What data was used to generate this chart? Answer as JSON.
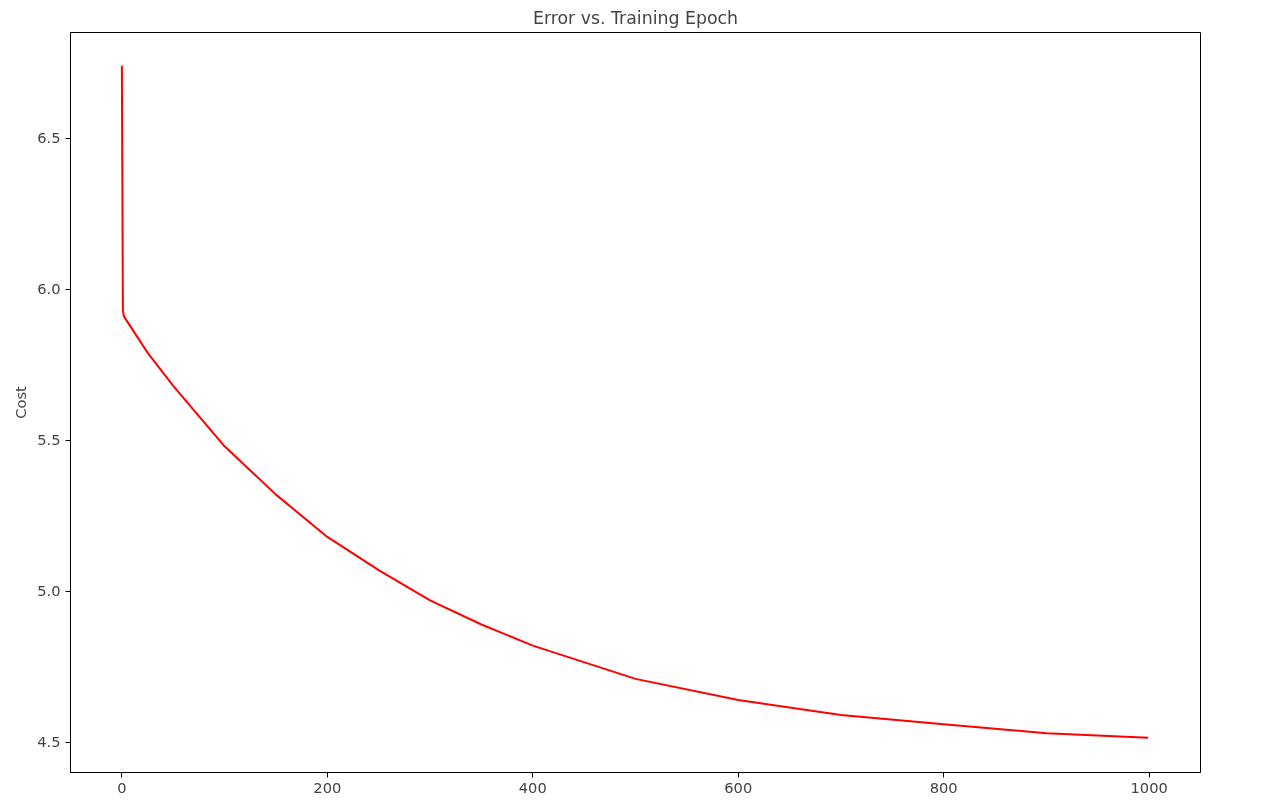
{
  "chart_data": {
    "type": "line",
    "title": "Error vs. Training Epoch",
    "ylabel": "Cost",
    "series": [
      {
        "color": "#ff0000",
        "x": [
          0,
          1,
          2,
          25,
          50,
          75,
          100,
          150,
          200,
          250,
          300,
          350,
          400,
          500,
          600,
          700,
          800,
          900,
          999
        ],
        "values": [
          6.74,
          5.93,
          5.91,
          5.79,
          5.68,
          5.58,
          5.48,
          5.32,
          5.18,
          5.07,
          4.97,
          4.89,
          4.82,
          4.71,
          4.64,
          4.59,
          4.56,
          4.53,
          4.515
        ]
      }
    ],
    "xlim": [
      -50,
      1050
    ],
    "xticks": [
      0,
      200,
      400,
      600,
      800,
      1000
    ],
    "ylim": [
      4.4,
      6.85
    ],
    "yticks": [
      {
        "value": 4.5,
        "label": "4.5"
      },
      {
        "value": 5.0,
        "label": "5.0"
      },
      {
        "value": 5.5,
        "label": "5.5"
      },
      {
        "value": 6.0,
        "label": "6.0"
      },
      {
        "value": 6.5,
        "label": "6.5"
      }
    ],
    "grid": false
  }
}
